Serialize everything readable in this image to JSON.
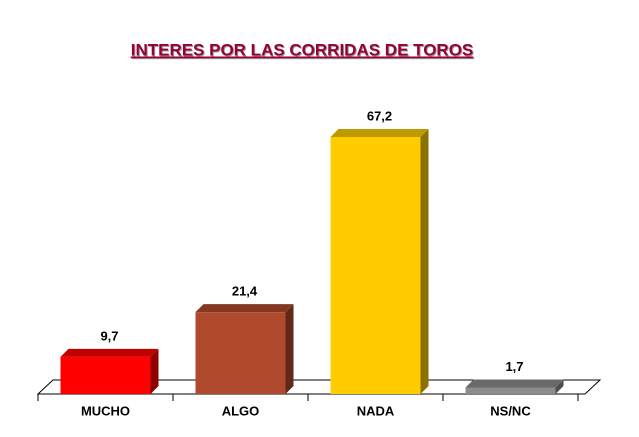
{
  "chart_data": {
    "type": "bar",
    "title": "INTERES POR LAS CORRIDAS DE TOROS",
    "categories": [
      "MUCHO",
      "ALGO",
      "NADA",
      "NS/NC"
    ],
    "values": [
      9.7,
      21.4,
      67.2,
      1.7
    ],
    "value_labels": [
      "9,7",
      "21,4",
      "67,2",
      "1,7"
    ],
    "colors": [
      "#ff0000",
      "#b04a2e",
      "#ffcc00",
      "#8c8c8c"
    ]
  }
}
